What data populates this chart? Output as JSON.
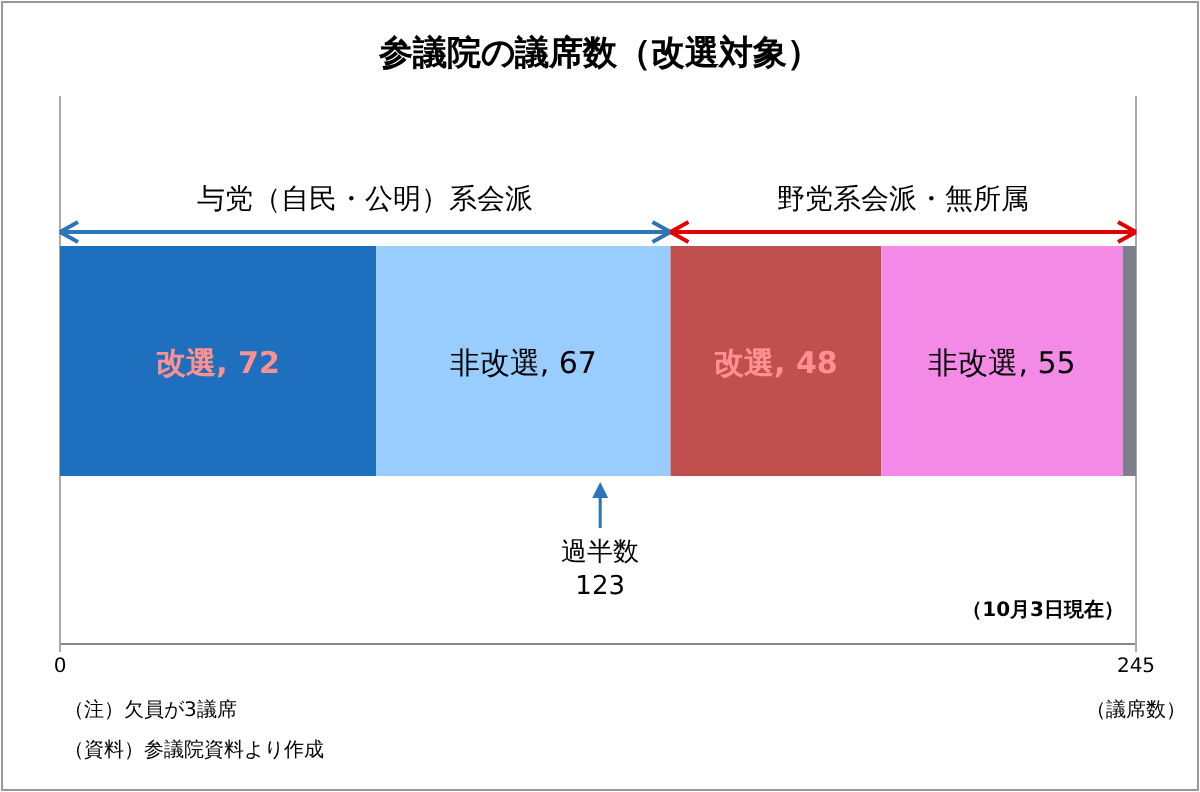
{
  "chart_data": {
    "type": "bar",
    "orientation": "horizontal",
    "stacked": true,
    "title": "参議院の議席数（改選対象）",
    "xlabel": "（議席数）",
    "categories": [
      null
    ],
    "xlim": [
      0,
      245
    ],
    "xticks": [
      0,
      245
    ],
    "series": [
      {
        "color": "#1f6fbf",
        "values": [
          72
        ],
        "value_labels": [
          "改選, 72"
        ]
      },
      {
        "color": "#99ccff",
        "values": [
          67
        ],
        "value_labels": [
          "非改選, 67"
        ]
      },
      {
        "color": "#c0504d",
        "values": [
          48
        ],
        "value_labels": [
          "改選, 48"
        ]
      },
      {
        "color": "#f28ae6",
        "values": [
          55
        ],
        "value_labels": [
          "非改選, 55"
        ]
      },
      {
        "color": "#7f7f8c",
        "values": [
          3
        ],
        "value_labels": [
          null
        ]
      }
    ],
    "annotations": [
      "与党（自民・公明）系会派",
      "野党系会派・無所属",
      "過半数\n123",
      "（10月3日現在）",
      "（注）欠員が3議席",
      "（資料）参議院資料より作成"
    ]
  }
}
